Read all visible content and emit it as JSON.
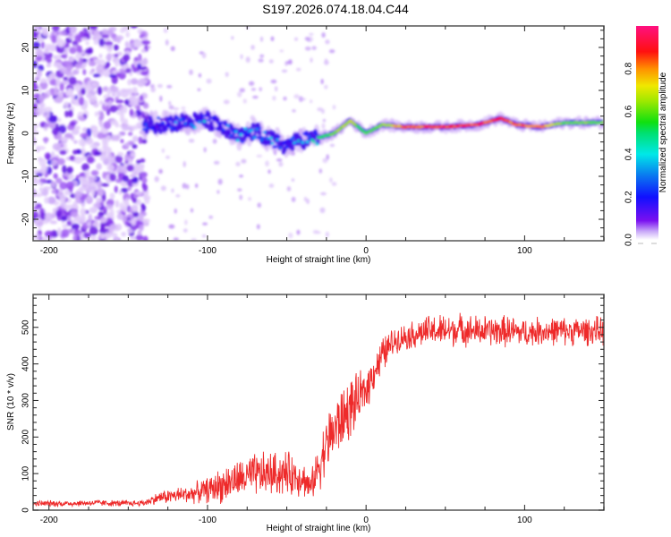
{
  "title": "S197.2026.074.18.04.C44",
  "chart_data": [
    {
      "type": "heatmap",
      "name": "spectrogram",
      "xlabel": "Height of straight line (km)",
      "ylabel": "Frequency (Hz)",
      "xlim": [
        -210,
        150
      ],
      "ylim": [
        -25,
        25
      ],
      "xticks": [
        -200,
        -100,
        0,
        100
      ],
      "yticks": [
        -20,
        -10,
        0,
        10,
        20
      ],
      "grid": false,
      "colorbar": {
        "label": "Normalized spectral amplitude",
        "range": [
          0.0,
          1.0
        ],
        "ticks": [
          "0.0",
          "0.2",
          "0.4",
          "0.6",
          "0.8"
        ],
        "colormap": "rainbow (violet → blue → cyan → green → yellow → red → magenta)"
      },
      "signal_ridge": {
        "description": "Broadband noise (low amplitude, violet) for heights < -140 km; a strong narrow frequency ridge near +2 Hz from about -140 km to 150 km, scattered between -120 and -40 km, becoming very strong and narrow (red) for heights > 0 km.",
        "x": [
          -140,
          -120,
          -100,
          -90,
          -80,
          -70,
          -60,
          -50,
          -40,
          -30,
          -20,
          -10,
          -5,
          0,
          10,
          25,
          50,
          70,
          85,
          95,
          110,
          125,
          150
        ],
        "freq_hz": [
          2.0,
          2.5,
          3.0,
          1.0,
          -1.0,
          0.5,
          -1.5,
          -3.0,
          -1.5,
          -1.0,
          0.0,
          3.0,
          1.5,
          0.0,
          2.0,
          1.5,
          1.5,
          2.0,
          3.5,
          2.0,
          1.5,
          2.5,
          2.5
        ],
        "amplitude": [
          0.3,
          0.35,
          0.4,
          0.35,
          0.4,
          0.35,
          0.4,
          0.35,
          0.45,
          0.5,
          0.6,
          0.7,
          0.55,
          0.55,
          0.6,
          0.85,
          0.9,
          0.9,
          0.9,
          0.85,
          0.85,
          0.6,
          0.6
        ]
      }
    },
    {
      "type": "line",
      "name": "snr",
      "xlabel": "Height of straight line (km)",
      "ylabel": "SNR (10 * v/v)",
      "xlim": [
        -210,
        150
      ],
      "ylim": [
        0,
        590
      ],
      "xticks": [
        -200,
        -100,
        0,
        100
      ],
      "yticks": [
        0,
        100,
        200,
        300,
        400,
        500
      ],
      "grid": false,
      "color": "#ee2a2a",
      "series": [
        {
          "name": "SNR",
          "x": [
            -210,
            -190,
            -170,
            -150,
            -140,
            -130,
            -120,
            -110,
            -100,
            -90,
            -80,
            -70,
            -60,
            -50,
            -40,
            -35,
            -30,
            -25,
            -20,
            -15,
            -10,
            -5,
            0,
            5,
            10,
            15,
            20,
            30,
            40,
            50,
            60,
            70,
            80,
            90,
            100,
            110,
            120,
            130,
            140,
            150
          ],
          "mean": [
            18,
            18,
            20,
            18,
            20,
            35,
            40,
            45,
            55,
            70,
            85,
            95,
            100,
            100,
            90,
            60,
            120,
            180,
            220,
            250,
            280,
            300,
            330,
            380,
            420,
            450,
            470,
            480,
            490,
            490,
            495,
            490,
            490,
            490,
            485,
            490,
            490,
            490,
            490,
            490
          ],
          "amp": [
            10,
            10,
            10,
            10,
            10,
            20,
            25,
            30,
            40,
            60,
            60,
            70,
            70,
            70,
            60,
            40,
            80,
            90,
            110,
            100,
            100,
            80,
            70,
            60,
            60,
            50,
            40,
            45,
            50,
            55,
            50,
            50,
            50,
            50,
            45,
            45,
            45,
            45,
            45,
            45
          ]
        }
      ]
    }
  ]
}
